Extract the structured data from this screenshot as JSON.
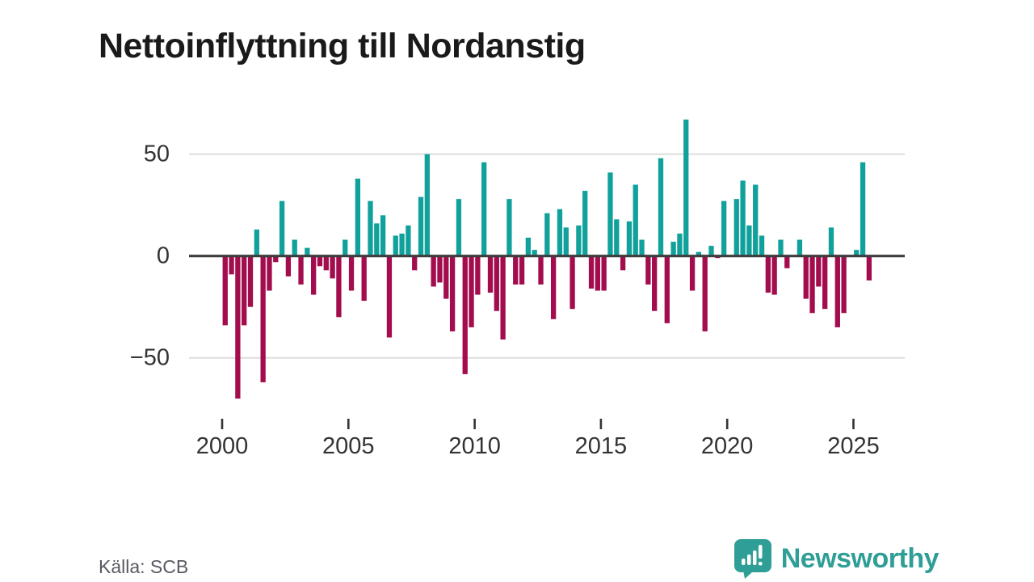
{
  "title": "Nettoinflyttning till Nordanstig",
  "source": "Källa: SCB",
  "brand": {
    "name": "Newsworthy",
    "color": "#2f9e97"
  },
  "colors": {
    "positive_bar": "#11a19c",
    "negative_bar": "#a30d4d",
    "grid": "#dddddd",
    "zero_axis": "#3d3d3d",
    "tick": "#333333",
    "axis_label": "#333333",
    "title_text": "#1a1a1a",
    "source_text": "#595963"
  },
  "chart_data": {
    "type": "bar",
    "title": "Nettoinflyttning till Nordanstig",
    "xlabel": "",
    "ylabel": "",
    "frequency": "quarterly",
    "start_year": 2000,
    "x_tick_labels": [
      "2000",
      "2005",
      "2010",
      "2015",
      "2020",
      "2025"
    ],
    "y_ticks": [
      {
        "label": "50",
        "value": 50
      },
      {
        "label": "0",
        "value": 0
      },
      {
        "label": "−50",
        "value": -50
      }
    ],
    "ylim": [
      -75,
      70
    ],
    "grid": "horizontal",
    "legend": "none",
    "series": [
      {
        "name": "Nettoinflyttning",
        "values": [
          -34,
          -9,
          -70,
          -34,
          -25,
          13,
          -62,
          -17,
          -3,
          27,
          -10,
          8,
          -14,
          4,
          -19,
          -5,
          -7,
          -11,
          -30,
          8,
          -17,
          38,
          -22,
          27,
          16,
          20,
          -40,
          10,
          11,
          15,
          -7,
          29,
          50,
          -15,
          -13,
          -21,
          -37,
          28,
          -58,
          -35,
          -19,
          46,
          -18,
          -27,
          -41,
          28,
          -14,
          -14,
          9,
          3,
          -14,
          21,
          -31,
          23,
          14,
          -26,
          15,
          32,
          -16,
          -17,
          -17,
          41,
          18,
          -7,
          17,
          35,
          8,
          -14,
          -27,
          48,
          -33,
          7,
          11,
          67,
          -17,
          2,
          -37,
          5,
          -1,
          27,
          0,
          28,
          37,
          15,
          35,
          10,
          -18,
          -19,
          8,
          -6,
          0,
          8,
          -21,
          -28,
          -15,
          -26,
          14,
          -35,
          -28,
          0,
          3,
          46,
          -12
        ]
      }
    ]
  }
}
